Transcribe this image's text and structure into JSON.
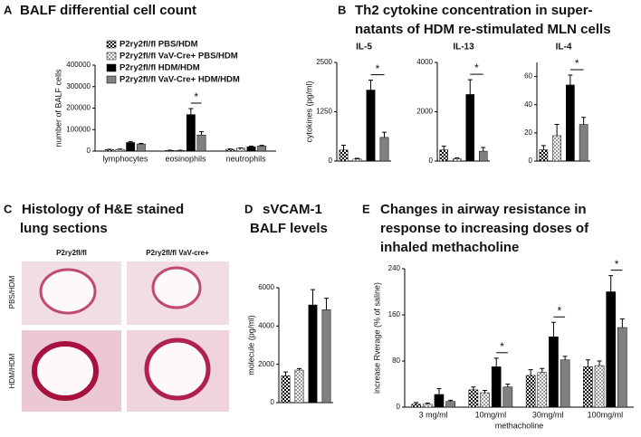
{
  "chart_data": [
    {
      "type": "bar",
      "panel": "A",
      "panel_title": [
        "BALF differential cell count"
      ],
      "ylabel": "number of BALF cells",
      "categories": [
        "lymphocytes",
        "eosinophils",
        "neutrophils"
      ],
      "ylim": [
        0,
        400000
      ],
      "yticks": [
        0,
        100000,
        200000,
        300000,
        400000
      ],
      "series": [
        {
          "name": "P2ry2fl/fl PBS/HDM",
          "color": "#000000",
          "hatch": true,
          "values": [
            7000,
            3000,
            8000
          ],
          "errors": [
            1500,
            1000,
            2000
          ]
        },
        {
          "name": "P2ry2fl/fl VaV-Cre+ PBS/HDM",
          "color": "#9a9a9a",
          "hatch": true,
          "values": [
            8000,
            3000,
            13000
          ],
          "errors": [
            1500,
            1000,
            2000
          ]
        },
        {
          "name": "P2ry2fl/fl HDM/HDM",
          "color": "#000000",
          "hatch": false,
          "values": [
            40000,
            170000,
            20000
          ],
          "errors": [
            5000,
            28000,
            3000
          ]
        },
        {
          "name": "P2ry2fl/fl VaV-Cre+ HDM/HDM",
          "color": "#808080",
          "hatch": false,
          "values": [
            33000,
            75000,
            24000
          ],
          "errors": [
            3000,
            15000,
            3000
          ]
        }
      ],
      "annotations": [
        {
          "category": 1,
          "label": "*"
        }
      ]
    },
    {
      "type": "bar",
      "panel": "B",
      "panel_title": [
        "Th2 cytokine concentration in super-",
        "natants of HDM re-stimulated MLN cells"
      ],
      "title": "IL-5",
      "ylabel": "cytokines (pg/ml)",
      "ylim": [
        0,
        2500
      ],
      "yticks": [
        0,
        1250,
        2500
      ],
      "values": [
        280,
        50,
        1800,
        600
      ],
      "errors": [
        120,
        20,
        250,
        130
      ],
      "colors": [
        "#000000",
        "#9a9a9a",
        "#000000",
        "#808080"
      ],
      "hatch": [
        true,
        true,
        false,
        false
      ],
      "annotations": [
        {
          "label": "*"
        }
      ]
    },
    {
      "type": "bar",
      "title": "IL-13",
      "ylim": [
        0,
        4000
      ],
      "yticks": [
        0,
        2000,
        4000
      ],
      "values": [
        450,
        100,
        2700,
        400
      ],
      "errors": [
        150,
        30,
        600,
        150
      ],
      "colors": [
        "#000000",
        "#9a9a9a",
        "#000000",
        "#808080"
      ],
      "hatch": [
        true,
        true,
        false,
        false
      ],
      "annotations": [
        {
          "label": "*"
        }
      ]
    },
    {
      "type": "bar",
      "title": "IL-4",
      "ylim": [
        0,
        70
      ],
      "yticks": [
        0,
        20,
        40,
        60
      ],
      "values": [
        8,
        18,
        54,
        26
      ],
      "errors": [
        3,
        8,
        7,
        5
      ],
      "colors": [
        "#000000",
        "#9a9a9a",
        "#000000",
        "#808080"
      ],
      "hatch": [
        true,
        true,
        false,
        false
      ],
      "annotations": [
        {
          "label": "*"
        }
      ]
    },
    {
      "type": "bar",
      "panel": "D",
      "panel_title": [
        "sVCAM-1",
        "BALF levels"
      ],
      "ylabel": "molecule (pg/ml)",
      "ylim": [
        0,
        6000
      ],
      "yticks": [
        0,
        2000,
        4000,
        6000
      ],
      "values": [
        1400,
        1700,
        5100,
        4850
      ],
      "errors": [
        200,
        80,
        800,
        600
      ],
      "colors": [
        "#000000",
        "#9a9a9a",
        "#000000",
        "#808080"
      ],
      "hatch": [
        true,
        true,
        false,
        false
      ]
    },
    {
      "type": "bar",
      "panel": "E",
      "panel_title": [
        "Changes in airway resistance in",
        "response to increasing doses of",
        "inhaled methacholine"
      ],
      "ylabel": "increase Rverage (% of saline)",
      "xlabel": "methacholine",
      "categories": [
        "3 mg/ml",
        "10mg/ml",
        "30mg/ml",
        "100mg/ml"
      ],
      "ylim": [
        0,
        240
      ],
      "yticks": [
        0,
        80,
        160,
        240
      ],
      "series": [
        {
          "color": "#000000",
          "hatch": true,
          "values": [
            5,
            30,
            55,
            70
          ],
          "errors": [
            3,
            5,
            10,
            12
          ]
        },
        {
          "color": "#9a9a9a",
          "hatch": true,
          "values": [
            5,
            25,
            60,
            72
          ],
          "errors": [
            2,
            4,
            7,
            8
          ]
        },
        {
          "color": "#000000",
          "hatch": false,
          "values": [
            22,
            70,
            122,
            200
          ],
          "errors": [
            10,
            15,
            25,
            28
          ]
        },
        {
          "color": "#808080",
          "hatch": false,
          "values": [
            10,
            35,
            82,
            138
          ],
          "errors": [
            2,
            5,
            6,
            15
          ]
        }
      ],
      "annotations": [
        {
          "category": 1,
          "label": "*"
        },
        {
          "category": 2,
          "label": "*"
        },
        {
          "category": 3,
          "label": "*"
        }
      ]
    }
  ],
  "histology": {
    "label": "C",
    "title_lines": [
      "Histology of H&E stained",
      "lung sections"
    ],
    "columns": [
      "P2ry2fl/fl",
      "P2ry2fl/fl VaV-cre+"
    ],
    "rows": [
      "PBS/HDM",
      "HDM/HDM"
    ]
  }
}
